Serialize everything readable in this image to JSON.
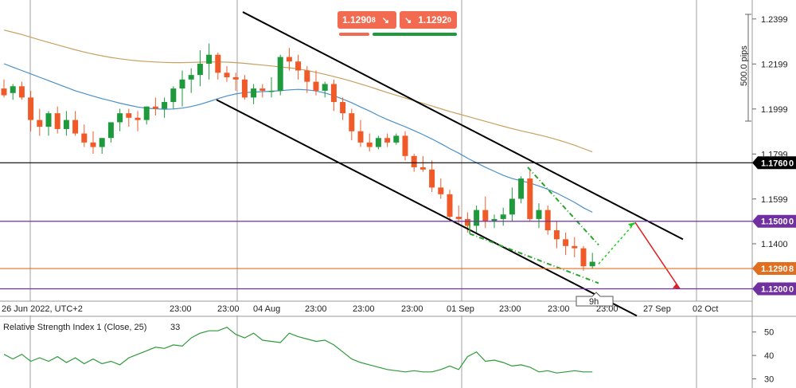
{
  "chart_data": [
    {
      "type": "candlestick",
      "price_scale": {
        "ticks": [
          "1.2399",
          "1.2199",
          "1.1999",
          "1.1799",
          "1.1599",
          "1.1400"
        ],
        "tick_values": [
          1.2399,
          1.2199,
          1.1999,
          1.1799,
          1.1599,
          1.14
        ],
        "ylim": [
          1.1145,
          1.2455
        ]
      },
      "time_axis": {
        "labels": [
          "26 Jun 2022, UTC+2",
          "23:00",
          "23:00",
          "04 Aug",
          "23:00",
          "23:00",
          "23:00",
          "01 Sep",
          "23:00",
          "23:00",
          "23:00",
          "27 Sep",
          "02 Oct"
        ],
        "bars_start_label_index": 0
      },
      "range_label": "500.0 pips",
      "time_marker": "9h",
      "quotes": {
        "bid": "1.1290",
        "bid_small": "8",
        "ask": "1.1292",
        "ask_small": "0"
      },
      "horizontal_levels": [
        {
          "price": 1.176,
          "label": "1.1760",
          "small": "0",
          "color": "#000000"
        },
        {
          "price": 1.15,
          "label": "1.1500",
          "small": "0",
          "color": "#7030a0"
        },
        {
          "price": 1.129,
          "label": "1.1290",
          "small": "8",
          "color": "#e07020"
        },
        {
          "price": 1.12,
          "label": "1.1200",
          "small": "0",
          "color": "#7030a0"
        }
      ],
      "colors": {
        "up": "#1e9a3c",
        "down": "#f05a28",
        "ma_fast": "#4a90c8",
        "ma_slow": "#c8a060",
        "rsi": "#2e9a3a",
        "channel": "#000000",
        "projection_up": "#22cc22",
        "projection_down": "#e02020"
      },
      "candles": [
        [
          1.209,
          1.213,
          1.205,
          1.206
        ],
        [
          1.207,
          1.211,
          1.204,
          1.21
        ],
        [
          1.21,
          1.212,
          1.204,
          1.205
        ],
        [
          1.205,
          1.208,
          1.19,
          1.195
        ],
        [
          1.195,
          1.2,
          1.188,
          1.192
        ],
        [
          1.192,
          1.199,
          1.188,
          1.198
        ],
        [
          1.198,
          1.201,
          1.189,
          1.191
        ],
        [
          1.191,
          1.199,
          1.188,
          1.195
        ],
        [
          1.195,
          1.199,
          1.188,
          1.189
        ],
        [
          1.189,
          1.193,
          1.183,
          1.185
        ],
        [
          1.185,
          1.19,
          1.18,
          1.183
        ],
        [
          1.183,
          1.187,
          1.18,
          1.187
        ],
        [
          1.187,
          1.194,
          1.185,
          1.194
        ],
        [
          1.194,
          1.2,
          1.19,
          1.198
        ],
        [
          1.198,
          1.2,
          1.192,
          1.196
        ],
        [
          1.196,
          1.199,
          1.19,
          1.195
        ],
        [
          1.195,
          1.201,
          1.193,
          1.201
        ],
        [
          1.201,
          1.205,
          1.197,
          1.2
        ],
        [
          1.2,
          1.205,
          1.196,
          1.203
        ],
        [
          1.203,
          1.21,
          1.2,
          1.209
        ],
        [
          1.209,
          1.217,
          1.201,
          1.213
        ],
        [
          1.213,
          1.218,
          1.207,
          1.215
        ],
        [
          1.215,
          1.226,
          1.21,
          1.22
        ],
        [
          1.22,
          1.229,
          1.213,
          1.224
        ],
        [
          1.224,
          1.225,
          1.213,
          1.216
        ],
        [
          1.216,
          1.219,
          1.212,
          1.214
        ],
        [
          1.214,
          1.216,
          1.208,
          1.213
        ],
        [
          1.213,
          1.215,
          1.204,
          1.205
        ],
        [
          1.205,
          1.211,
          1.202,
          1.209
        ],
        [
          1.209,
          1.211,
          1.205,
          1.208
        ],
        [
          1.208,
          1.214,
          1.205,
          1.208
        ],
        [
          1.208,
          1.224,
          1.206,
          1.223
        ],
        [
          1.223,
          1.227,
          1.217,
          1.221
        ],
        [
          1.221,
          1.224,
          1.213,
          1.217
        ],
        [
          1.217,
          1.219,
          1.207,
          1.212
        ],
        [
          1.212,
          1.217,
          1.206,
          1.208
        ],
        [
          1.208,
          1.212,
          1.205,
          1.211
        ],
        [
          1.211,
          1.213,
          1.199,
          1.203
        ],
        [
          1.203,
          1.205,
          1.195,
          1.198
        ],
        [
          1.198,
          1.2,
          1.186,
          1.19
        ],
        [
          1.19,
          1.195,
          1.183,
          1.185
        ],
        [
          1.185,
          1.189,
          1.181,
          1.183
        ],
        [
          1.183,
          1.188,
          1.182,
          1.187
        ],
        [
          1.187,
          1.189,
          1.183,
          1.185
        ],
        [
          1.185,
          1.189,
          1.184,
          1.188
        ],
        [
          1.188,
          1.19,
          1.177,
          1.179
        ],
        [
          1.179,
          1.18,
          1.172,
          1.174
        ],
        [
          1.174,
          1.179,
          1.172,
          1.173
        ],
        [
          1.173,
          1.177,
          1.163,
          1.165
        ],
        [
          1.165,
          1.169,
          1.16,
          1.162
        ],
        [
          1.162,
          1.164,
          1.15,
          1.152
        ],
        [
          1.152,
          1.157,
          1.149,
          1.151
        ],
        [
          1.151,
          1.154,
          1.145,
          1.148
        ],
        [
          1.148,
          1.157,
          1.145,
          1.155
        ],
        [
          1.155,
          1.161,
          1.147,
          1.15
        ],
        [
          1.15,
          1.153,
          1.147,
          1.151
        ],
        [
          1.151,
          1.156,
          1.148,
          1.153
        ],
        [
          1.153,
          1.165,
          1.15,
          1.16
        ],
        [
          1.16,
          1.17,
          1.158,
          1.169
        ],
        [
          1.169,
          1.173,
          1.15,
          1.151
        ],
        [
          1.151,
          1.158,
          1.147,
          1.155
        ],
        [
          1.155,
          1.157,
          1.144,
          1.146
        ],
        [
          1.146,
          1.15,
          1.138,
          1.142
        ],
        [
          1.142,
          1.145,
          1.135,
          1.139
        ],
        [
          1.139,
          1.143,
          1.134,
          1.138
        ],
        [
          1.138,
          1.139,
          1.128,
          1.13
        ],
        [
          1.13,
          1.136,
          1.129,
          1.132
        ]
      ],
      "ma_fast": [
        1.22,
        1.2185,
        1.217,
        1.2155,
        1.214,
        1.2125,
        1.211,
        1.2095,
        1.208,
        1.2068,
        1.2056,
        1.2045,
        1.2035,
        1.2025,
        1.2016,
        1.2008,
        1.2002,
        1.2,
        1.1998,
        1.1999,
        1.2003,
        1.201,
        1.202,
        1.2032,
        1.2045,
        1.2057,
        1.2066,
        1.2072,
        1.2074,
        1.2076,
        1.2078,
        1.208,
        1.2084,
        1.2086,
        1.2084,
        1.2079,
        1.207,
        1.2058,
        1.2043,
        1.2027,
        1.2008,
        1.199,
        1.197,
        1.1952,
        1.1936,
        1.192,
        1.1903,
        1.1885,
        1.1866,
        1.1845,
        1.1823,
        1.1803,
        1.178,
        1.176,
        1.174,
        1.1722,
        1.1704,
        1.169,
        1.168,
        1.167,
        1.1657,
        1.1642,
        1.1625,
        1.1605,
        1.1584,
        1.156,
        1.154
      ],
      "ma_slow": [
        1.235,
        1.234,
        1.233,
        1.2318,
        1.2306,
        1.2295,
        1.2284,
        1.2273,
        1.2262,
        1.2252,
        1.2243,
        1.2235,
        1.2228,
        1.2222,
        1.2217,
        1.2213,
        1.221,
        1.2208,
        1.2206,
        1.2205,
        1.2205,
        1.2206,
        1.2207,
        1.2208,
        1.2208,
        1.2207,
        1.2205,
        1.2202,
        1.2198,
        1.2194,
        1.219,
        1.2186,
        1.2182,
        1.2177,
        1.217,
        1.2162,
        1.2153,
        1.2143,
        1.2133,
        1.2122,
        1.211,
        1.2098,
        1.2085,
        1.2072,
        1.206,
        1.2048,
        1.2036,
        1.2024,
        1.2012,
        1.2,
        1.1988,
        1.1977,
        1.1966,
        1.1955,
        1.1944,
        1.1933,
        1.1922,
        1.1912,
        1.1902,
        1.1893,
        1.1884,
        1.1874,
        1.1863,
        1.1851,
        1.1838,
        1.1823,
        1.1808
      ]
    },
    {
      "type": "line",
      "title": "Relative Strength Index 1 (Close, 25)",
      "value_label": "33",
      "ticks": [
        "50",
        "40",
        "30"
      ],
      "tick_values": [
        50,
        40,
        30
      ],
      "ylim": [
        28.5,
        55
      ],
      "values": [
        40.5,
        38.5,
        40.5,
        37.5,
        39.0,
        37.5,
        39.5,
        37.0,
        39.0,
        36.5,
        38.5,
        36.5,
        37.5,
        36.0,
        39.0,
        40.5,
        42.0,
        43.5,
        43.0,
        44.5,
        44.0,
        47.5,
        49.5,
        50.5,
        50.5,
        52.0,
        49.0,
        47.5,
        49.5,
        46.5,
        46.0,
        45.5,
        49.5,
        48.0,
        47.0,
        46.0,
        46.5,
        44.5,
        41.5,
        38.5,
        37.0,
        36.0,
        35.0,
        34.0,
        33.5,
        33.0,
        33.5,
        33.0,
        33.0,
        34.0,
        35.5,
        34.0,
        39.5,
        41.5,
        37.5,
        38.0,
        37.0,
        35.5,
        36.0,
        35.0,
        33.0,
        33.5,
        32.5,
        33.0,
        33.5,
        33.0,
        33.0
      ]
    }
  ],
  "labels": {
    "bid_box": "1.1290",
    "ask_box": "1.1292"
  }
}
